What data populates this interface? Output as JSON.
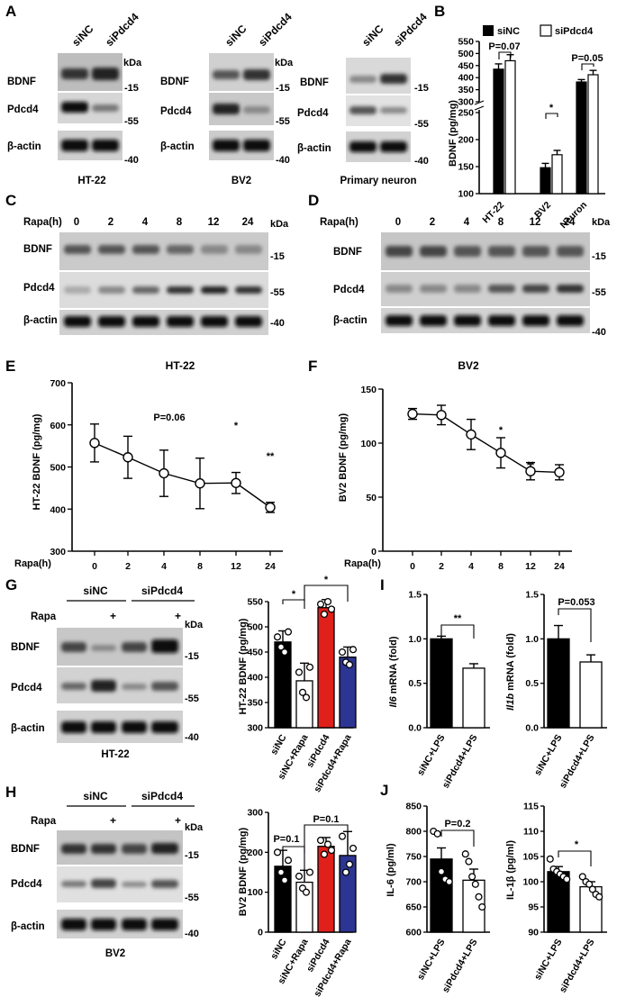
{
  "panel_a": {
    "label": "A",
    "blots": [
      {
        "cell": "HT-22",
        "lanes": [
          "siNC",
          "siPdcd4"
        ],
        "bands": [
          "BDNF",
          "Pdcd4",
          "β-actin"
        ],
        "kda": [
          "kDa",
          "-15",
          "-55",
          "-40"
        ]
      },
      {
        "cell": "BV2",
        "lanes": [
          "siNC",
          "siPdcd4"
        ],
        "bands": [
          "BDNF",
          "Pdcd4",
          "β-actin"
        ],
        "kda": [
          "kDa",
          "-15",
          "-55",
          "-40"
        ]
      },
      {
        "cell": "Primary neuron",
        "lanes": [
          "siNC",
          "siPdcd4"
        ],
        "bands": [
          "BDNF",
          "Pdcd4",
          "β-actin"
        ],
        "kda": [
          "kDa",
          "-15",
          "-55",
          "-40"
        ]
      }
    ]
  },
  "panel_c": {
    "label": "C",
    "rapa_label": "Rapa(h)",
    "times": [
      "0",
      "2",
      "4",
      "8",
      "12",
      "24"
    ],
    "bands": [
      "BDNF",
      "Pdcd4",
      "β-actin"
    ],
    "kda": [
      "kDa",
      "-15",
      "-55",
      "-40"
    ],
    "cell": "HT-22"
  },
  "panel_d": {
    "label": "D",
    "rapa_label": "Rapa(h)",
    "times": [
      "0",
      "2",
      "4",
      "8",
      "12",
      "24"
    ],
    "bands": [
      "BDNF",
      "Pdcd4",
      "β-actin"
    ],
    "kda": [
      "kDa",
      "-15",
      "-55",
      "-40"
    ],
    "cell": "BV2"
  },
  "panel_g": {
    "label": "G",
    "groups": [
      "siNC",
      "siPdcd4"
    ],
    "rapa": "Rapa",
    "plus": "+",
    "bands": [
      "BDNF",
      "Pdcd4",
      "β-actin"
    ],
    "kda": [
      "kDa",
      "-15",
      "-55",
      "-40"
    ],
    "cell": "HT-22"
  },
  "panel_h": {
    "label": "H",
    "groups": [
      "siNC",
      "siPdcd4"
    ],
    "rapa": "Rapa",
    "plus": "+",
    "bands": [
      "BDNF",
      "Pdcd4",
      "β-actin"
    ],
    "kda": [
      "kDa",
      "-15",
      "-55",
      "-40"
    ],
    "cell": "BV2"
  },
  "chart_data": [
    {
      "id": "B",
      "label": "B",
      "type": "bar",
      "categories": [
        "HT-22",
        "BV2",
        "Neuron"
      ],
      "series": [
        {
          "name": "siNC",
          "values": [
            435,
            148,
            382
          ],
          "errors": [
            22,
            8,
            10
          ]
        },
        {
          "name": "siPdcd4",
          "values": [
            470,
            172,
            412
          ],
          "errors": [
            25,
            8,
            18
          ]
        }
      ],
      "ylabel": "BDNF (pg/mg)",
      "yticks": [
        "100",
        "150",
        "200",
        "250",
        "300",
        "350",
        "400",
        "450",
        "500",
        "550"
      ],
      "annotations": [
        "P=0.07",
        "*",
        "P=0.05"
      ],
      "legend": "top"
    },
    {
      "id": "E",
      "label": "E",
      "type": "line",
      "title": "HT-22",
      "x": [
        "0",
        "2",
        "4",
        "8",
        "12",
        "24"
      ],
      "values": [
        557,
        523,
        485,
        461,
        462,
        404
      ],
      "errors": [
        45,
        50,
        55,
        60,
        25,
        12
      ],
      "ylabel": "HT-22 BDNF (pg/mg)",
      "xlabel": "Rapa(h)",
      "ylim": [
        300,
        700
      ],
      "yticks": [
        "300",
        "400",
        "500",
        "600",
        "700"
      ],
      "annotations": [
        "P=0.06",
        "*",
        "**"
      ]
    },
    {
      "id": "F",
      "label": "F",
      "type": "line",
      "title": "BV2",
      "x": [
        "0",
        "2",
        "4",
        "8",
        "12",
        "24"
      ],
      "values": [
        127,
        126,
        108,
        91,
        74,
        73
      ],
      "errors": [
        5,
        9,
        14,
        14,
        8,
        7
      ],
      "ylabel": "BV2 BDNF (pg/mg)",
      "xlabel": "Rapa(h)",
      "ylim": [
        0,
        150
      ],
      "yticks": [
        "0",
        "50",
        "100",
        "150"
      ],
      "annotations": [
        "*",
        "**"
      ]
    },
    {
      "id": "G",
      "type": "bar",
      "categories": [
        "siNC",
        "siNC+Rapa",
        "siPdcd4",
        "siPdcd4+Rapa"
      ],
      "values": [
        470,
        393,
        538,
        440
      ],
      "errors": [
        22,
        35,
        16,
        20
      ],
      "colors": [
        "#000000",
        "#ffffff",
        "#e0201b",
        "#2c3591"
      ],
      "ylabel": "HT-22 BDNF (pg/mg)",
      "ylim": [
        300,
        550
      ],
      "yticks": [
        "300",
        "350",
        "400",
        "450",
        "500",
        "550"
      ],
      "points": [
        [
          480,
          460,
          450,
          490
        ],
        [
          410,
          370,
          360,
          420
        ],
        [
          545,
          525,
          550,
          535
        ],
        [
          450,
          430,
          425,
          455
        ]
      ],
      "annotations": [
        "*",
        "*"
      ]
    },
    {
      "id": "H",
      "type": "bar",
      "categories": [
        "siNC",
        "siNC+Rapa",
        "siPdcd4",
        "siPdcd4+Rapa"
      ],
      "values": [
        165,
        125,
        215,
        192
      ],
      "errors": [
        40,
        30,
        22,
        60
      ],
      "colors": [
        "#000000",
        "#ffffff",
        "#e0201b",
        "#2c3591"
      ],
      "ylabel": "BV2 BDNF (pg/mg)",
      "ylim": [
        0,
        300
      ],
      "yticks": [
        "0",
        "100",
        "200",
        "300"
      ],
      "points": [
        [
          200,
          150,
          130,
          180
        ],
        [
          140,
          110,
          100,
          150
        ],
        [
          230,
          195,
          220,
          205
        ],
        [
          240,
          150,
          170,
          210
        ]
      ],
      "annotations": [
        "P=0.1",
        "P=0.1"
      ]
    },
    {
      "id": "I1",
      "label": "I",
      "type": "bar",
      "categories": [
        "siNC+LPS",
        "siPdcd4+LPS"
      ],
      "values": [
        1.0,
        0.67
      ],
      "errors": [
        0.03,
        0.05
      ],
      "colors": [
        "#000000",
        "#ffffff"
      ],
      "ylabel_italic": "Il6",
      "ylabel": " mRNA (fold)",
      "ylim": [
        0,
        1.5
      ],
      "yticks": [
        "0.0",
        "0.5",
        "1.0",
        "1.5"
      ],
      "annotations": [
        "**"
      ]
    },
    {
      "id": "I2",
      "type": "bar",
      "categories": [
        "siNC+LPS",
        "siPdcd4+LPS"
      ],
      "values": [
        1.0,
        0.74
      ],
      "errors": [
        0.15,
        0.08
      ],
      "colors": [
        "#000000",
        "#ffffff"
      ],
      "ylabel_italic": "Il1b",
      "ylabel": " mRNA (fold)",
      "ylim": [
        0,
        1.5
      ],
      "yticks": [
        "0.0",
        "0.5",
        "1.0",
        "1.5"
      ],
      "annotations": [
        "P=0.053"
      ]
    },
    {
      "id": "J1",
      "label": "J",
      "type": "bar",
      "categories": [
        "siNC+LPS",
        "siPdcd4+LPS"
      ],
      "values": [
        745,
        703
      ],
      "errors": [
        22,
        22
      ],
      "colors": [
        "#000000",
        "#ffffff"
      ],
      "ylabel": "IL-6 (pg/ml)",
      "ylim": [
        600,
        850
      ],
      "yticks": [
        "600",
        "650",
        "700",
        "750",
        "800",
        "850"
      ],
      "points": [
        [
          800,
          795,
          720,
          705,
          700
        ],
        [
          755,
          740,
          710,
          695,
          670,
          650
        ]
      ],
      "annotations": [
        "P=0.2"
      ]
    },
    {
      "id": "J2",
      "type": "bar",
      "categories": [
        "siNC+LPS",
        "siPdcd4+LPS"
      ],
      "values": [
        102,
        99
      ],
      "errors": [
        1,
        1
      ],
      "colors": [
        "#000000",
        "#ffffff"
      ],
      "ylabel": "IL-1β (pg/ml)",
      "ylim": [
        90,
        115
      ],
      "yticks": [
        "90",
        "95",
        "100",
        "105",
        "110",
        "115"
      ],
      "points": [
        [
          104.5,
          102.5,
          102,
          101.5,
          101,
          100.5
        ],
        [
          101,
          100,
          99.5,
          98.5,
          97.5,
          97
        ]
      ],
      "annotations": [
        "*"
      ]
    }
  ]
}
